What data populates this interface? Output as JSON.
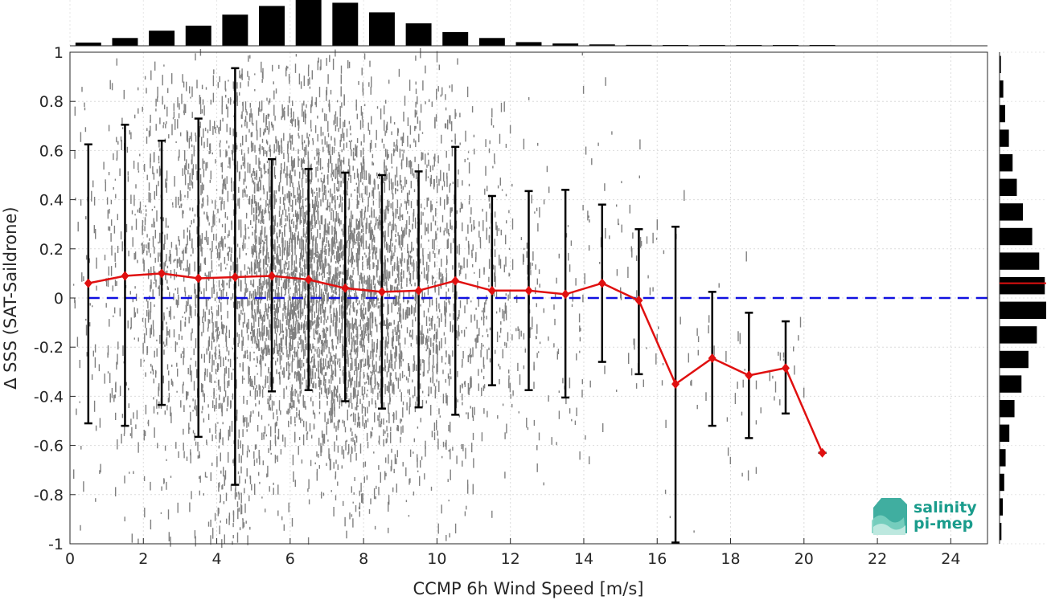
{
  "chart_data": {
    "type": "scatter",
    "title": "",
    "xlabel": "CCMP 6h Wind Speed [m/s]",
    "ylabel": "∆ SSS (SAT-Saildrone)",
    "xlim": [
      0,
      25
    ],
    "ylim": [
      -1,
      1
    ],
    "x_ticks": [
      "0",
      "2",
      "4",
      "6",
      "8",
      "10",
      "12",
      "14",
      "16",
      "18",
      "20",
      "22",
      "24"
    ],
    "y_ticks": [
      "1",
      "0.8",
      "0.6",
      "0.4",
      "0.2",
      "0",
      "-0.2",
      "-0.4",
      "-0.6",
      "-0.8",
      "-1"
    ],
    "grid": true,
    "legend": "none",
    "colors": {
      "scatter": "#808080",
      "mean_line": "#e01010",
      "zero_line": "#1010e0",
      "errorbar": "#000000",
      "histogram": "#000000"
    },
    "binned_stats": {
      "x": [
        0.5,
        1.5,
        2.5,
        3.5,
        4.5,
        5.5,
        6.5,
        7.5,
        8.5,
        9.5,
        10.5,
        11.5,
        12.5,
        13.5,
        14.5,
        15.5,
        16.5,
        17.5,
        18.5,
        19.5,
        20.5
      ],
      "mean": [
        0.06,
        0.09,
        0.1,
        0.08,
        0.085,
        0.09,
        0.075,
        0.04,
        0.025,
        0.03,
        0.07,
        0.03,
        0.03,
        0.015,
        0.06,
        -0.01,
        -0.35,
        -0.245,
        -0.315,
        -0.285,
        -0.63
      ],
      "upper": [
        0.625,
        0.705,
        0.64,
        0.73,
        0.935,
        0.565,
        0.525,
        0.51,
        0.5,
        0.515,
        0.615,
        0.415,
        0.435,
        0.44,
        0.38,
        0.28,
        0.29,
        0.025,
        -0.06,
        -0.095,
        -0.63
      ],
      "lower": [
        -0.51,
        -0.52,
        -0.435,
        -0.565,
        -0.76,
        -0.38,
        -0.375,
        -0.42,
        -0.45,
        -0.445,
        -0.475,
        -0.355,
        -0.375,
        -0.405,
        -0.26,
        -0.31,
        -0.995,
        -0.52,
        -0.57,
        -0.47,
        -0.63
      ]
    },
    "zero_line_y": 0,
    "top_histogram": {
      "bin_centers": [
        0.5,
        1.5,
        2.5,
        3.5,
        4.5,
        5.5,
        6.5,
        7.5,
        8.5,
        9.5,
        10.5,
        11.5,
        12.5,
        13.5,
        14.5,
        15.5,
        16.5,
        17.5,
        18.5,
        19.5,
        20.5
      ],
      "relative_counts": [
        0.07,
        0.17,
        0.33,
        0.44,
        0.68,
        0.87,
        1.0,
        0.94,
        0.73,
        0.49,
        0.3,
        0.17,
        0.08,
        0.05,
        0.03,
        0.02,
        0.0,
        0.0,
        0.0,
        0.0,
        0.0
      ]
    },
    "right_histogram": {
      "bin_centers": [
        0.95,
        0.85,
        0.75,
        0.65,
        0.55,
        0.45,
        0.35,
        0.25,
        0.15,
        0.05,
        -0.05,
        -0.15,
        -0.25,
        -0.35,
        -0.45,
        -0.55,
        -0.65,
        -0.75,
        -0.85,
        -0.95
      ],
      "relative_counts": [
        0.03,
        0.08,
        0.12,
        0.2,
        0.28,
        0.37,
        0.5,
        0.7,
        0.85,
        0.97,
        1.0,
        0.8,
        0.62,
        0.47,
        0.32,
        0.21,
        0.13,
        0.1,
        0.07,
        0.04
      ],
      "mean_marker": 0.06
    }
  },
  "logo": {
    "line1": "salinity",
    "line2": "pi-mep"
  }
}
